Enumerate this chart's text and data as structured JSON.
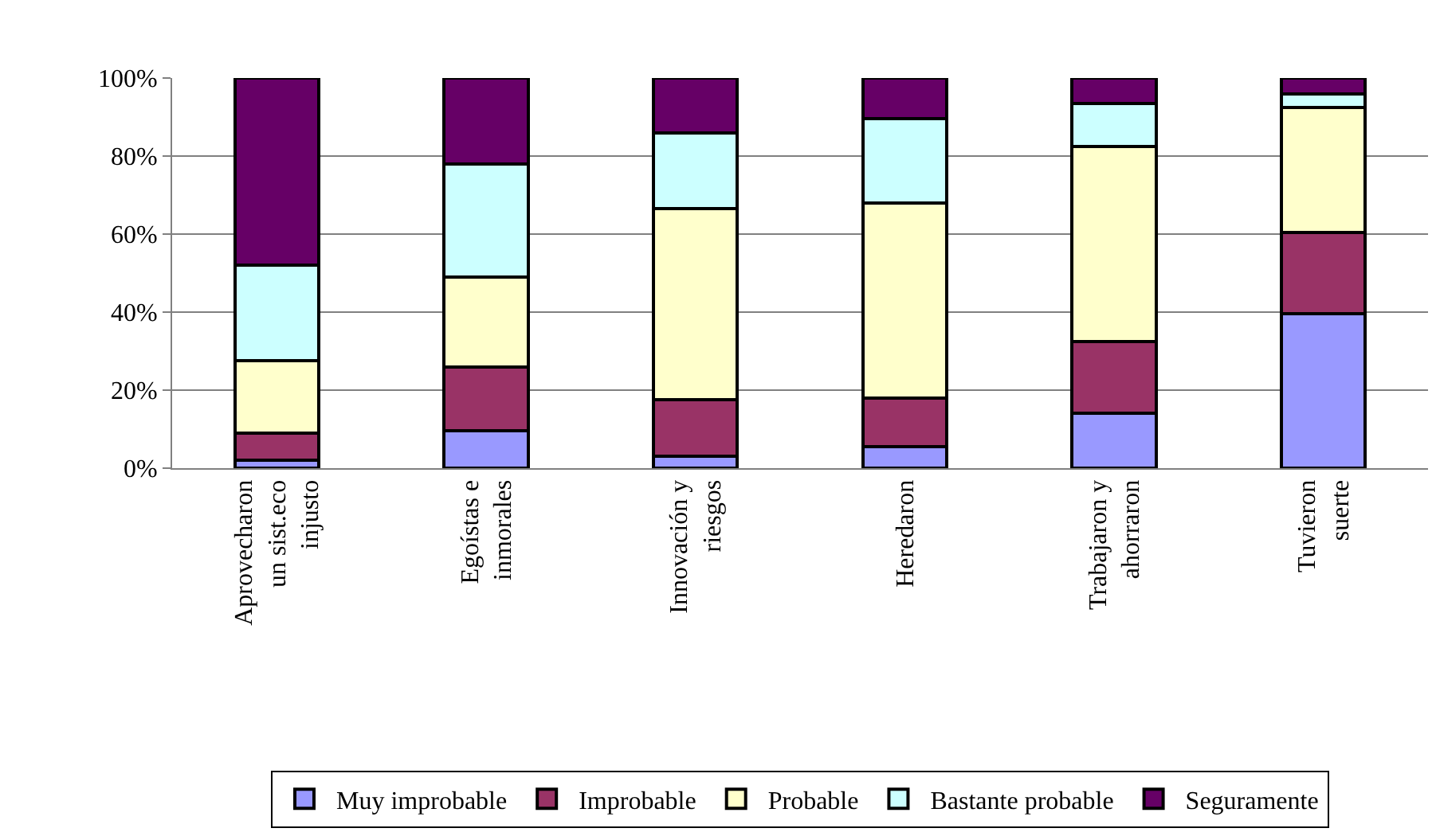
{
  "chart_data": {
    "type": "bar",
    "stacked": true,
    "categories": [
      "Aprovecharon un sist.eco injusto",
      "Egoístas e inmorales",
      "Innovación y riesgos",
      "Heredaron",
      "Trabajaron y ahorraron",
      "Tuvieron suerte"
    ],
    "series": [
      {
        "name": "Muy improbable",
        "color": "#9999ff",
        "values": [
          2,
          9.5,
          3,
          5.5,
          14,
          39.5
        ]
      },
      {
        "name": "Improbable",
        "color": "#993366",
        "values": [
          7,
          16.5,
          14.5,
          12.5,
          18.5,
          21
        ]
      },
      {
        "name": "Probable",
        "color": "#ffffcc",
        "values": [
          18.5,
          23,
          49,
          50,
          50,
          32
        ]
      },
      {
        "name": "Bastante probable",
        "color": "#ccffff",
        "values": [
          24.5,
          29,
          19.5,
          21.5,
          11,
          3.5
        ]
      },
      {
        "name": "Seguramente",
        "color": "#660066",
        "values": [
          48,
          22,
          14,
          10.5,
          6.5,
          4
        ]
      }
    ],
    "ylim": [
      0,
      100
    ],
    "yticks": [
      {
        "value": 0,
        "label": "0%"
      },
      {
        "value": 20,
        "label": "20%"
      },
      {
        "value": 40,
        "label": "40%"
      },
      {
        "value": 60,
        "label": "60%"
      },
      {
        "value": 80,
        "label": "80%"
      },
      {
        "value": 100,
        "label": "100%"
      }
    ],
    "grid": "y",
    "legend": "bottom"
  }
}
